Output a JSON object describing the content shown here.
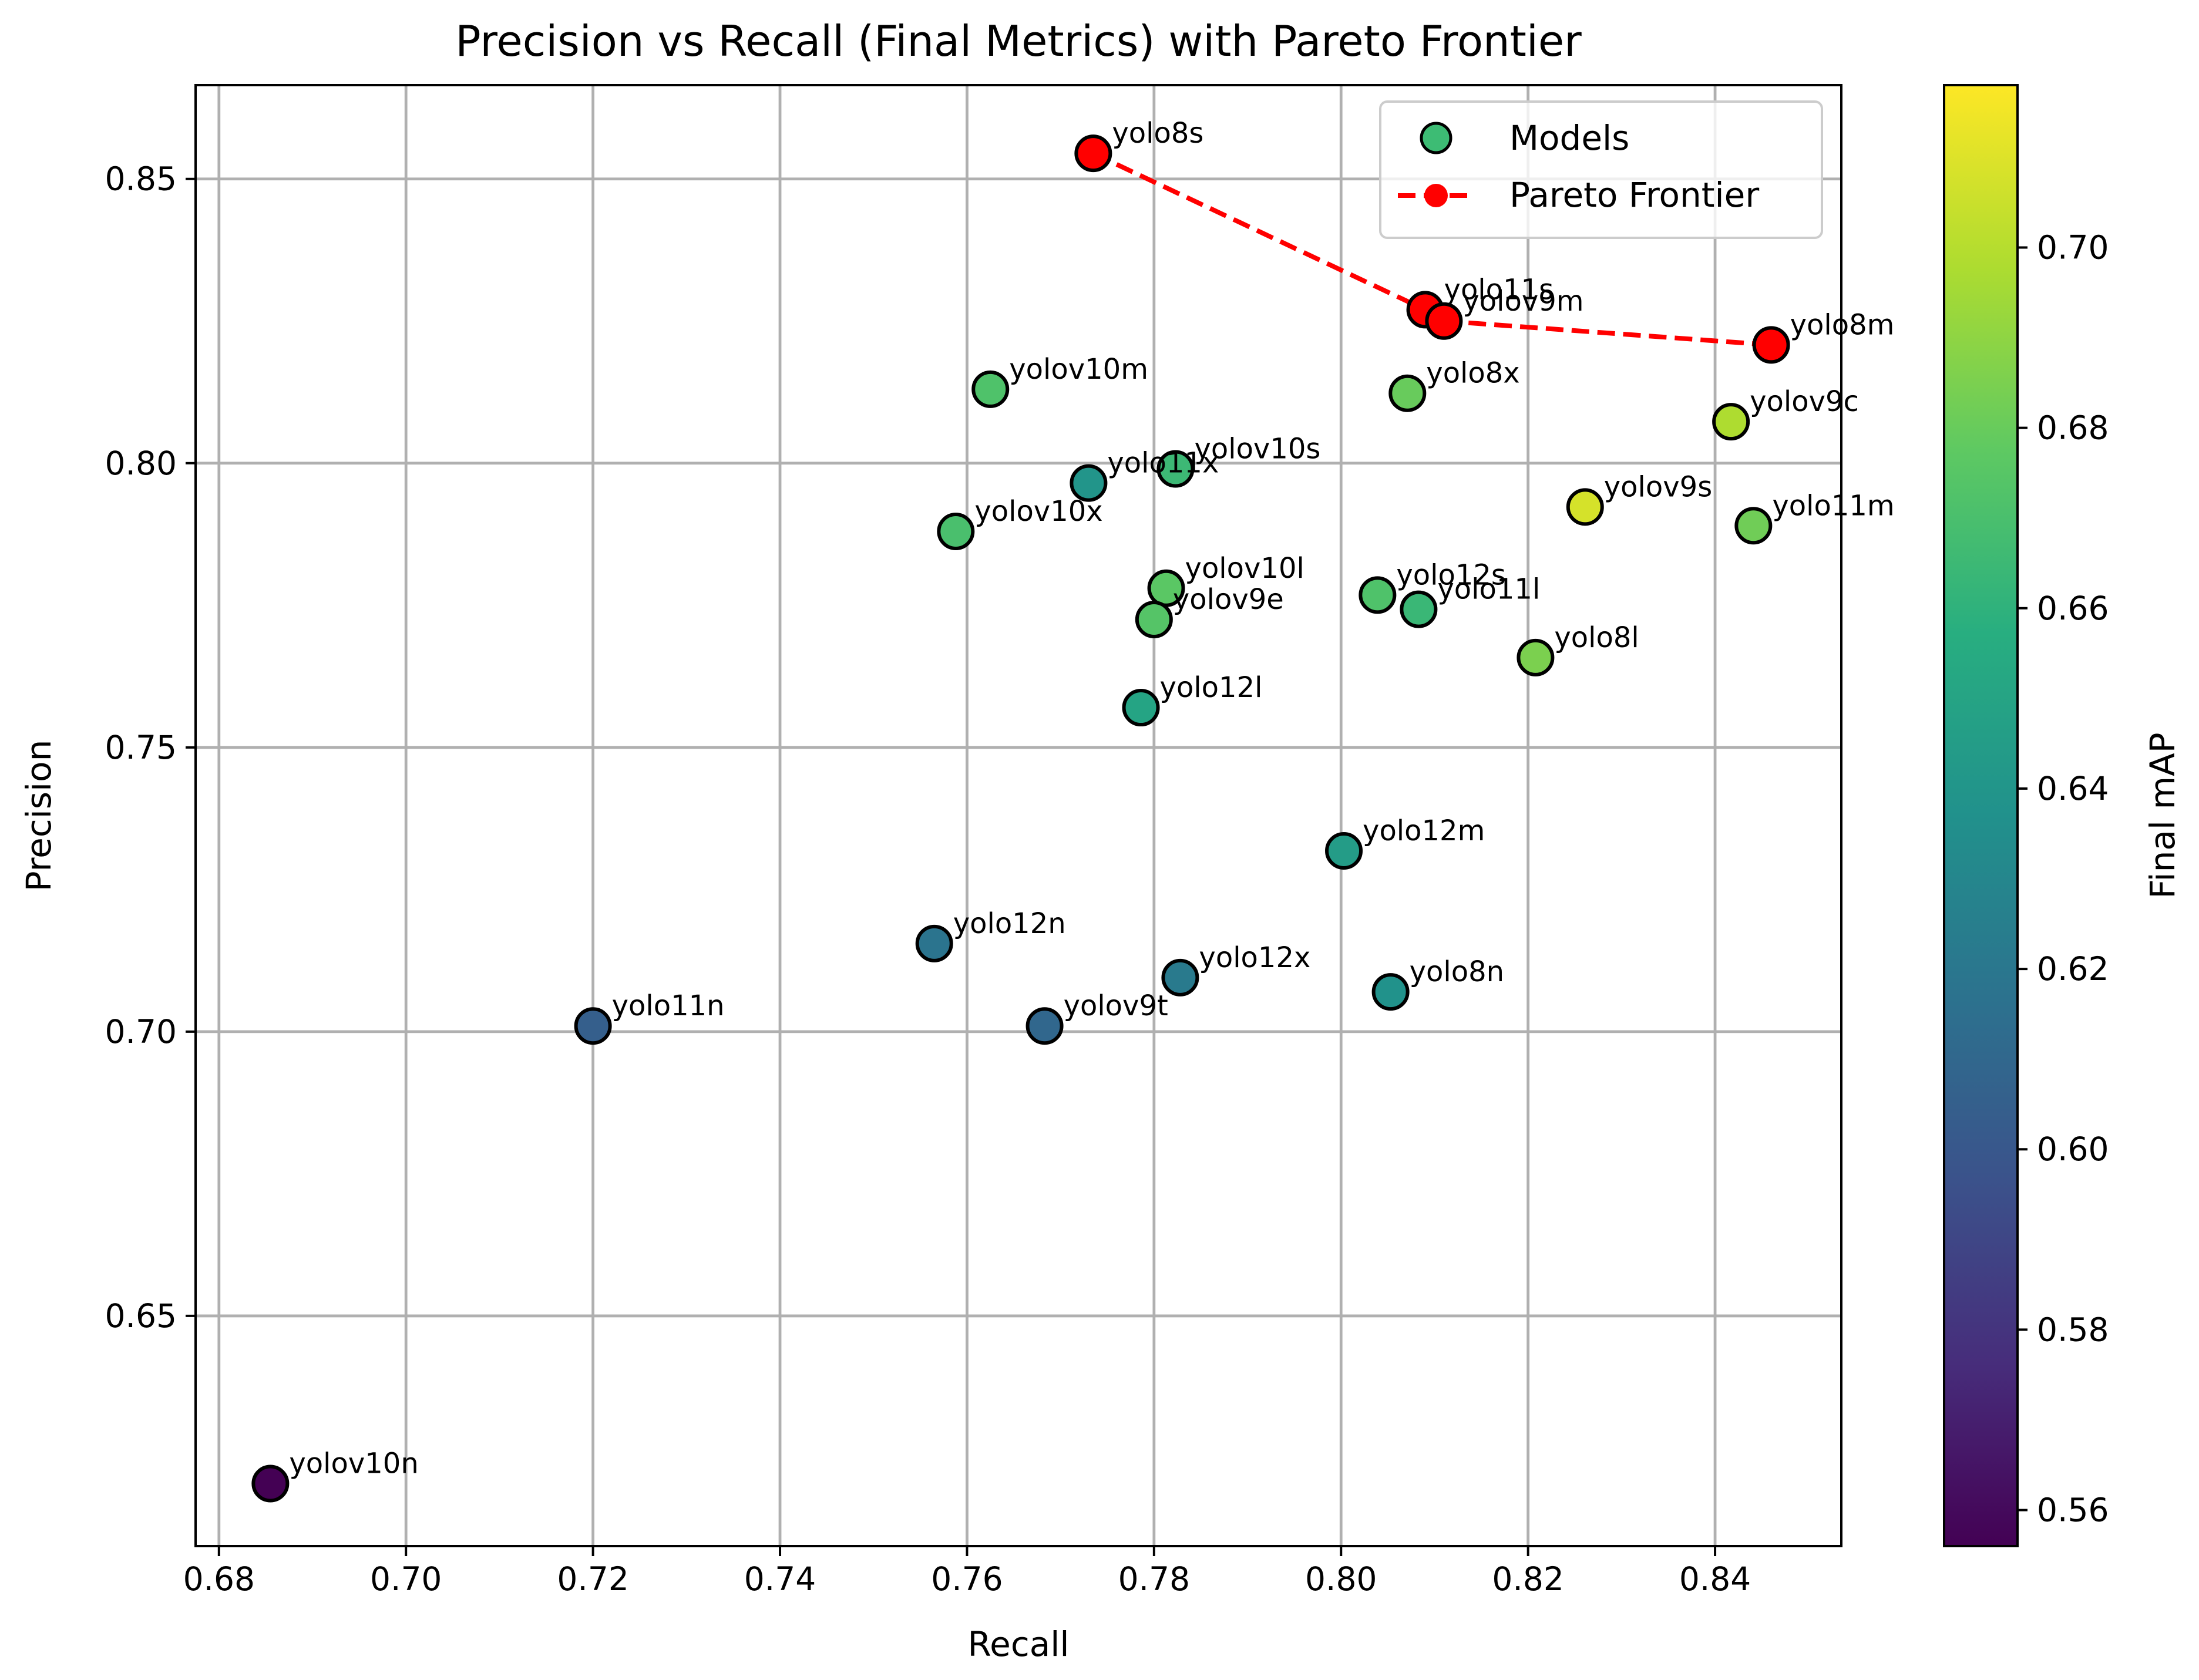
{
  "chart_data": {
    "type": "scatter",
    "title": "Precision vs Recall (Final Metrics) with Pareto Frontier",
    "xlabel": "Recall",
    "ylabel": "Precision",
    "xlim": [
      0.6775,
      0.8535
    ],
    "ylim": [
      0.6095,
      0.8665
    ],
    "x_ticks": [
      0.68,
      0.7,
      0.72,
      0.74,
      0.76,
      0.78,
      0.8,
      0.82,
      0.84
    ],
    "y_ticks": [
      0.65,
      0.7,
      0.75,
      0.8,
      0.85
    ],
    "grid": true,
    "legend": {
      "position": "top-right",
      "entries": [
        "Models",
        "Pareto Frontier"
      ]
    },
    "colorbar": {
      "label": "Final mAP",
      "range": [
        0.556,
        0.718
      ],
      "ticks": [
        0.56,
        0.58,
        0.6,
        0.62,
        0.64,
        0.66,
        0.68,
        0.7
      ],
      "colormap": "viridis"
    },
    "series": [
      {
        "name": "Models",
        "points": [
          {
            "label": "yolov10n",
            "x": 0.6855,
            "y": 0.6205,
            "map": 0.556
          },
          {
            "label": "yolo11n",
            "x": 0.72,
            "y": 0.701,
            "map": 0.605
          },
          {
            "label": "yolov9t",
            "x": 0.7683,
            "y": 0.701,
            "map": 0.61
          },
          {
            "label": "yolo12n",
            "x": 0.7565,
            "y": 0.7155,
            "map": 0.618
          },
          {
            "label": "yolo12x",
            "x": 0.7828,
            "y": 0.7095,
            "map": 0.622
          },
          {
            "label": "yolo8n",
            "x": 0.8053,
            "y": 0.707,
            "map": 0.638
          },
          {
            "label": "yolo12m",
            "x": 0.8003,
            "y": 0.7318,
            "map": 0.645
          },
          {
            "label": "yolo12l",
            "x": 0.7786,
            "y": 0.757,
            "map": 0.65
          },
          {
            "label": "yolo11x",
            "x": 0.773,
            "y": 0.7965,
            "map": 0.64
          },
          {
            "label": "yolov10s",
            "x": 0.7823,
            "y": 0.799,
            "map": 0.665
          },
          {
            "label": "yolov10m",
            "x": 0.7625,
            "y": 0.813,
            "map": 0.672
          },
          {
            "label": "yolov10x",
            "x": 0.7588,
            "y": 0.788,
            "map": 0.67
          },
          {
            "label": "yolov10l",
            "x": 0.7813,
            "y": 0.778,
            "map": 0.676
          },
          {
            "label": "yolov9e",
            "x": 0.78,
            "y": 0.7725,
            "map": 0.674
          },
          {
            "label": "yolo12s",
            "x": 0.8039,
            "y": 0.7768,
            "map": 0.672
          },
          {
            "label": "yolo11l",
            "x": 0.8083,
            "y": 0.7743,
            "map": 0.664
          },
          {
            "label": "yolo8x",
            "x": 0.8071,
            "y": 0.8123,
            "map": 0.68
          },
          {
            "label": "yolo8l",
            "x": 0.8208,
            "y": 0.7658,
            "map": 0.685
          },
          {
            "label": "yolov9s",
            "x": 0.8261,
            "y": 0.7923,
            "map": 0.708
          },
          {
            "label": "yolov9c",
            "x": 0.8417,
            "y": 0.8073,
            "map": 0.698
          },
          {
            "label": "yolo11m",
            "x": 0.8441,
            "y": 0.789,
            "map": 0.682
          }
        ]
      },
      {
        "name": "Pareto Frontier",
        "color": "#ff0000",
        "line_style": "dashed",
        "points": [
          {
            "label": "yolo8s",
            "x": 0.7735,
            "y": 0.8545
          },
          {
            "label": "yolo11s",
            "x": 0.809,
            "y": 0.827
          },
          {
            "label": "yolov9m",
            "x": 0.811,
            "y": 0.825
          },
          {
            "label": "yolo8m",
            "x": 0.846,
            "y": 0.8208
          }
        ]
      }
    ]
  }
}
